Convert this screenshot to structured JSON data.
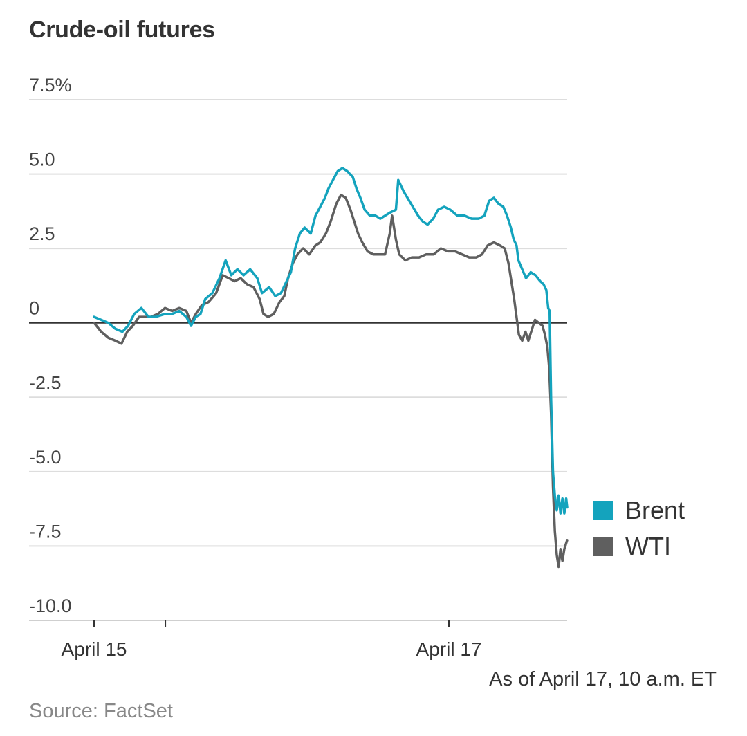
{
  "header": {
    "title": "Crude-oil futures"
  },
  "footer": {
    "as_of": "As of April 17, 10 a.m. ET",
    "source": "Source: FactSet"
  },
  "colors": {
    "brent": "#14a3bd",
    "wti": "#5f5f5f",
    "grid": "#dddddd",
    "zero": "#333333",
    "text": "#333333"
  },
  "chart_data": {
    "type": "line",
    "title": "Crude-oil futures",
    "xlabel": "",
    "ylabel": "",
    "ylim": [
      -10.0,
      7.5
    ],
    "xlim": [
      0,
      1
    ],
    "y_ticks": [
      {
        "value": 7.5,
        "label": "7.5%"
      },
      {
        "value": 5.0,
        "label": "5.0"
      },
      {
        "value": 2.5,
        "label": "2.5"
      },
      {
        "value": 0,
        "label": "0"
      },
      {
        "value": -2.5,
        "label": "-2.5"
      },
      {
        "value": -5.0,
        "label": "-5.0"
      },
      {
        "value": -7.5,
        "label": "-7.5"
      },
      {
        "value": -10.0,
        "label": "-10.0"
      }
    ],
    "x_ticks": [
      {
        "value": 0,
        "label": "April 15"
      },
      {
        "value": 0.1507,
        "label": ""
      },
      {
        "value": 0.75,
        "label": "April 17"
      }
    ],
    "grid": true,
    "legend_position": "right",
    "series": [
      {
        "name": "Brent",
        "color": "#14a3bd",
        "points": [
          [
            0.0,
            0.2
          ],
          [
            0.015,
            0.1
          ],
          [
            0.03,
            0.0
          ],
          [
            0.045,
            -0.2
          ],
          [
            0.06,
            -0.3
          ],
          [
            0.072,
            -0.1
          ],
          [
            0.085,
            0.3
          ],
          [
            0.1,
            0.5
          ],
          [
            0.115,
            0.2
          ],
          [
            0.13,
            0.2
          ],
          [
            0.15,
            0.3
          ],
          [
            0.165,
            0.3
          ],
          [
            0.18,
            0.4
          ],
          [
            0.195,
            0.2
          ],
          [
            0.205,
            -0.1
          ],
          [
            0.215,
            0.2
          ],
          [
            0.225,
            0.3
          ],
          [
            0.235,
            0.8
          ],
          [
            0.25,
            1.0
          ],
          [
            0.265,
            1.5
          ],
          [
            0.278,
            2.1
          ],
          [
            0.29,
            1.6
          ],
          [
            0.303,
            1.8
          ],
          [
            0.316,
            1.6
          ],
          [
            0.33,
            1.8
          ],
          [
            0.345,
            1.5
          ],
          [
            0.355,
            1.0
          ],
          [
            0.37,
            1.2
          ],
          [
            0.383,
            0.9
          ],
          [
            0.395,
            1.0
          ],
          [
            0.407,
            1.4
          ],
          [
            0.416,
            1.7
          ],
          [
            0.425,
            2.5
          ],
          [
            0.435,
            3.0
          ],
          [
            0.445,
            3.2
          ],
          [
            0.458,
            3.0
          ],
          [
            0.468,
            3.6
          ],
          [
            0.478,
            3.9
          ],
          [
            0.488,
            4.2
          ],
          [
            0.495,
            4.5
          ],
          [
            0.505,
            4.8
          ],
          [
            0.515,
            5.1
          ],
          [
            0.525,
            5.2
          ],
          [
            0.535,
            5.1
          ],
          [
            0.547,
            4.9
          ],
          [
            0.555,
            4.5
          ],
          [
            0.563,
            4.2
          ],
          [
            0.572,
            3.8
          ],
          [
            0.583,
            3.6
          ],
          [
            0.595,
            3.6
          ],
          [
            0.605,
            3.5
          ],
          [
            0.615,
            3.6
          ],
          [
            0.625,
            3.7
          ],
          [
            0.638,
            3.8
          ],
          [
            0.643,
            4.8
          ],
          [
            0.655,
            4.4
          ],
          [
            0.67,
            4.0
          ],
          [
            0.685,
            3.6
          ],
          [
            0.695,
            3.4
          ],
          [
            0.705,
            3.3
          ],
          [
            0.717,
            3.5
          ],
          [
            0.727,
            3.8
          ],
          [
            0.74,
            3.9
          ],
          [
            0.753,
            3.8
          ],
          [
            0.768,
            3.6
          ],
          [
            0.783,
            3.6
          ],
          [
            0.798,
            3.5
          ],
          [
            0.813,
            3.5
          ],
          [
            0.825,
            3.6
          ],
          [
            0.835,
            4.1
          ],
          [
            0.845,
            4.2
          ],
          [
            0.855,
            4.0
          ],
          [
            0.865,
            3.9
          ],
          [
            0.873,
            3.6
          ],
          [
            0.881,
            3.2
          ],
          [
            0.887,
            2.8
          ],
          [
            0.893,
            2.6
          ],
          [
            0.897,
            2.1
          ],
          [
            0.905,
            1.8
          ],
          [
            0.913,
            1.5
          ],
          [
            0.923,
            1.7
          ],
          [
            0.933,
            1.6
          ],
          [
            0.943,
            1.4
          ],
          [
            0.95,
            1.3
          ],
          [
            0.956,
            1.1
          ],
          [
            0.96,
            0.5
          ],
          [
            0.963,
            0.4
          ],
          [
            0.966,
            -2.5
          ],
          [
            0.97,
            -5.0
          ],
          [
            0.974,
            -5.8
          ],
          [
            0.978,
            -6.3
          ],
          [
            0.982,
            -5.8
          ],
          [
            0.986,
            -6.4
          ],
          [
            0.99,
            -5.9
          ],
          [
            0.994,
            -6.4
          ],
          [
            0.998,
            -5.9
          ],
          [
            1.0,
            -6.2
          ]
        ]
      },
      {
        "name": "WTI",
        "color": "#5f5f5f",
        "points": [
          [
            0.0,
            0.0
          ],
          [
            0.015,
            -0.3
          ],
          [
            0.03,
            -0.5
          ],
          [
            0.045,
            -0.6
          ],
          [
            0.058,
            -0.7
          ],
          [
            0.07,
            -0.3
          ],
          [
            0.082,
            -0.1
          ],
          [
            0.095,
            0.2
          ],
          [
            0.108,
            0.2
          ],
          [
            0.12,
            0.2
          ],
          [
            0.135,
            0.3
          ],
          [
            0.15,
            0.5
          ],
          [
            0.165,
            0.4
          ],
          [
            0.18,
            0.5
          ],
          [
            0.195,
            0.4
          ],
          [
            0.205,
            0.0
          ],
          [
            0.215,
            0.3
          ],
          [
            0.228,
            0.6
          ],
          [
            0.242,
            0.7
          ],
          [
            0.258,
            1.0
          ],
          [
            0.272,
            1.6
          ],
          [
            0.285,
            1.5
          ],
          [
            0.297,
            1.4
          ],
          [
            0.31,
            1.5
          ],
          [
            0.323,
            1.3
          ],
          [
            0.337,
            1.2
          ],
          [
            0.35,
            0.8
          ],
          [
            0.358,
            0.3
          ],
          [
            0.368,
            0.2
          ],
          [
            0.38,
            0.3
          ],
          [
            0.392,
            0.7
          ],
          [
            0.402,
            0.9
          ],
          [
            0.41,
            1.5
          ],
          [
            0.42,
            2.0
          ],
          [
            0.43,
            2.3
          ],
          [
            0.442,
            2.5
          ],
          [
            0.455,
            2.3
          ],
          [
            0.468,
            2.6
          ],
          [
            0.478,
            2.7
          ],
          [
            0.49,
            3.0
          ],
          [
            0.5,
            3.4
          ],
          [
            0.512,
            4.0
          ],
          [
            0.522,
            4.3
          ],
          [
            0.532,
            4.2
          ],
          [
            0.542,
            3.8
          ],
          [
            0.55,
            3.4
          ],
          [
            0.558,
            3.0
          ],
          [
            0.567,
            2.7
          ],
          [
            0.578,
            2.4
          ],
          [
            0.59,
            2.3
          ],
          [
            0.602,
            2.3
          ],
          [
            0.615,
            2.3
          ],
          [
            0.625,
            3.0
          ],
          [
            0.63,
            3.6
          ],
          [
            0.638,
            2.8
          ],
          [
            0.645,
            2.3
          ],
          [
            0.658,
            2.1
          ],
          [
            0.672,
            2.2
          ],
          [
            0.687,
            2.2
          ],
          [
            0.702,
            2.3
          ],
          [
            0.718,
            2.3
          ],
          [
            0.733,
            2.5
          ],
          [
            0.748,
            2.4
          ],
          [
            0.763,
            2.4
          ],
          [
            0.778,
            2.3
          ],
          [
            0.793,
            2.2
          ],
          [
            0.808,
            2.2
          ],
          [
            0.82,
            2.3
          ],
          [
            0.832,
            2.6
          ],
          [
            0.845,
            2.7
          ],
          [
            0.858,
            2.6
          ],
          [
            0.868,
            2.5
          ],
          [
            0.876,
            2.0
          ],
          [
            0.883,
            1.3
          ],
          [
            0.888,
            0.8
          ],
          [
            0.893,
            0.2
          ],
          [
            0.898,
            -0.4
          ],
          [
            0.905,
            -0.6
          ],
          [
            0.912,
            -0.3
          ],
          [
            0.918,
            -0.6
          ],
          [
            0.924,
            -0.3
          ],
          [
            0.932,
            0.1
          ],
          [
            0.94,
            0.0
          ],
          [
            0.948,
            -0.1
          ],
          [
            0.953,
            -0.4
          ],
          [
            0.958,
            -0.8
          ],
          [
            0.962,
            -1.5
          ],
          [
            0.966,
            -3.0
          ],
          [
            0.97,
            -5.5
          ],
          [
            0.974,
            -7.0
          ],
          [
            0.978,
            -7.8
          ],
          [
            0.982,
            -8.2
          ],
          [
            0.986,
            -7.6
          ],
          [
            0.99,
            -8.0
          ],
          [
            0.994,
            -7.6
          ],
          [
            1.0,
            -7.3
          ]
        ]
      }
    ]
  }
}
